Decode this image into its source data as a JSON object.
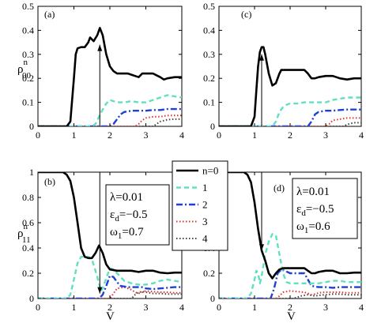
{
  "chart_data": [
    {
      "type": "line",
      "panel_label": "(a)",
      "ylabel_main": "ρ",
      "ylabel_sup": "n",
      "ylabel_sub": "00",
      "xlabel": "",
      "xlim": [
        0,
        4
      ],
      "ylim": [
        0,
        0.5
      ],
      "xticks": [
        0,
        1,
        2,
        3,
        4
      ],
      "yticks": [
        0,
        0.1,
        0.2,
        0.3,
        0.4,
        0.5
      ],
      "params": [],
      "arrow": {
        "x": 1.72,
        "y_from": 0.0,
        "y_to": 0.34
      },
      "series": [
        {
          "key": "n0",
          "x": [
            0,
            0.8,
            0.9,
            1.0,
            1.05,
            1.1,
            1.2,
            1.3,
            1.4,
            1.45,
            1.55,
            1.65,
            1.72,
            1.8,
            1.9,
            2.0,
            2.1,
            2.2,
            2.35,
            2.5,
            2.6,
            2.7,
            2.8,
            2.9,
            3.0,
            3.2,
            3.4,
            3.5,
            3.6,
            3.8,
            4.0
          ],
          "y": [
            0,
            0,
            0.02,
            0.2,
            0.3,
            0.325,
            0.33,
            0.33,
            0.35,
            0.37,
            0.355,
            0.38,
            0.41,
            0.38,
            0.3,
            0.25,
            0.23,
            0.22,
            0.22,
            0.22,
            0.215,
            0.21,
            0.205,
            0.22,
            0.22,
            0.22,
            0.205,
            0.195,
            0.2,
            0.205,
            0.205
          ]
        },
        {
          "key": "n1",
          "x": [
            0,
            1.5,
            1.6,
            1.7,
            1.8,
            1.9,
            2.0,
            2.1,
            2.2,
            2.4,
            2.6,
            2.8,
            3.0,
            3.2,
            3.4,
            3.6,
            3.8,
            4.0
          ],
          "y": [
            0,
            0,
            0.01,
            0.04,
            0.07,
            0.095,
            0.11,
            0.105,
            0.1,
            0.1,
            0.105,
            0.1,
            0.1,
            0.11,
            0.12,
            0.13,
            0.125,
            0.12
          ]
        },
        {
          "key": "n2",
          "x": [
            0,
            2.0,
            2.1,
            2.2,
            2.3,
            2.4,
            2.6,
            2.8,
            3.0,
            3.2,
            3.4,
            3.6,
            3.8,
            4.0
          ],
          "y": [
            0,
            0,
            0.01,
            0.03,
            0.05,
            0.06,
            0.065,
            0.065,
            0.065,
            0.068,
            0.068,
            0.072,
            0.072,
            0.072
          ]
        },
        {
          "key": "n3",
          "x": [
            0,
            2.7,
            2.8,
            2.9,
            3.0,
            3.2,
            3.4,
            3.6,
            3.8,
            4.0
          ],
          "y": [
            0,
            0,
            0.01,
            0.025,
            0.035,
            0.04,
            0.04,
            0.045,
            0.045,
            0.045
          ]
        },
        {
          "key": "n4",
          "x": [
            0,
            3.2,
            3.3,
            3.4,
            3.6,
            3.8,
            4.0
          ],
          "y": [
            0,
            0,
            0.01,
            0.02,
            0.028,
            0.03,
            0.03
          ]
        }
      ]
    },
    {
      "type": "line",
      "panel_label": "(c)",
      "ylabel_main": "",
      "ylabel_sup": "",
      "ylabel_sub": "",
      "xlabel": "",
      "xlim": [
        0,
        4
      ],
      "ylim": [
        0,
        0.5
      ],
      "xticks": [
        0,
        1,
        2,
        3,
        4
      ],
      "yticks": [
        0,
        0.1,
        0.2,
        0.3,
        0.4,
        0.5
      ],
      "params": [],
      "arrow": {
        "x": 1.2,
        "y_from": 0.0,
        "y_to": 0.3
      },
      "series": [
        {
          "key": "n0",
          "x": [
            0,
            0.9,
            1.0,
            1.05,
            1.1,
            1.15,
            1.2,
            1.25,
            1.3,
            1.4,
            1.5,
            1.6,
            1.7,
            1.75,
            1.85,
            2.0,
            2.2,
            2.4,
            2.5,
            2.6,
            2.7,
            2.8,
            3.0,
            3.2,
            3.4,
            3.6,
            3.8,
            4.0
          ],
          "y": [
            0,
            0,
            0.04,
            0.15,
            0.25,
            0.31,
            0.33,
            0.33,
            0.3,
            0.22,
            0.17,
            0.18,
            0.22,
            0.235,
            0.235,
            0.235,
            0.235,
            0.235,
            0.22,
            0.2,
            0.2,
            0.205,
            0.21,
            0.21,
            0.2,
            0.195,
            0.2,
            0.2
          ]
        },
        {
          "key": "n1",
          "x": [
            0,
            1.5,
            1.6,
            1.7,
            1.8,
            1.9,
            2.0,
            2.2,
            2.4,
            2.6,
            2.8,
            3.0,
            3.2,
            3.4,
            3.6,
            3.8,
            4.0
          ],
          "y": [
            0,
            0,
            0.02,
            0.06,
            0.08,
            0.09,
            0.095,
            0.095,
            0.1,
            0.1,
            0.1,
            0.1,
            0.11,
            0.115,
            0.12,
            0.12,
            0.12
          ]
        },
        {
          "key": "n2",
          "x": [
            0,
            2.5,
            2.6,
            2.7,
            2.8,
            3.0,
            3.2,
            3.4,
            3.6,
            3.8,
            4.0
          ],
          "y": [
            0,
            0,
            0.02,
            0.05,
            0.06,
            0.065,
            0.065,
            0.068,
            0.07,
            0.07,
            0.07
          ]
        },
        {
          "key": "n3",
          "x": [
            0,
            3.0,
            3.1,
            3.2,
            3.4,
            3.6,
            3.8,
            4.0
          ],
          "y": [
            0,
            0,
            0.01,
            0.025,
            0.03,
            0.035,
            0.035,
            0.035
          ]
        },
        {
          "key": "n4",
          "x": [
            0,
            3.5,
            3.6,
            3.7,
            3.8,
            4.0
          ],
          "y": [
            0,
            0,
            0.008,
            0.012,
            0.015,
            0.015
          ]
        }
      ]
    },
    {
      "type": "line",
      "panel_label": "(b)",
      "ylabel_main": "ρ",
      "ylabel_sup": "n",
      "ylabel_sub": "11",
      "xlabel": "V",
      "xlim": [
        0,
        4
      ],
      "ylim": [
        0,
        1
      ],
      "xticks": [
        0,
        1,
        2,
        3,
        4
      ],
      "yticks": [
        0,
        0.2,
        0.4,
        0.6,
        0.8,
        1
      ],
      "params": [
        "λ=0.01",
        "ε_d=−0.5",
        "ω_1=0.7"
      ],
      "arrow": {
        "x": 1.72,
        "y_from": 1.0,
        "y_to": 0.04
      },
      "series": [
        {
          "key": "n0",
          "x": [
            0,
            0.7,
            0.8,
            0.9,
            1.0,
            1.1,
            1.2,
            1.3,
            1.4,
            1.5,
            1.6,
            1.7,
            1.8,
            1.9,
            2.0,
            2.2,
            2.4,
            2.6,
            2.8,
            3.0,
            3.2,
            3.4,
            3.6,
            3.8,
            4.0
          ],
          "y": [
            1.0,
            1.0,
            0.98,
            0.93,
            0.8,
            0.6,
            0.4,
            0.33,
            0.32,
            0.32,
            0.36,
            0.42,
            0.36,
            0.27,
            0.23,
            0.22,
            0.22,
            0.22,
            0.21,
            0.22,
            0.22,
            0.205,
            0.2,
            0.205,
            0.205
          ]
        },
        {
          "key": "n1",
          "x": [
            0,
            0.8,
            0.9,
            1.0,
            1.1,
            1.2,
            1.3,
            1.4,
            1.5,
            1.6,
            1.7,
            1.75,
            1.8,
            1.9,
            2.0,
            2.1,
            2.2,
            2.4,
            2.6,
            2.8,
            3.0,
            3.2,
            3.4,
            3.6,
            3.8,
            4.0
          ],
          "y": [
            0,
            0,
            0.03,
            0.15,
            0.28,
            0.33,
            0.33,
            0.33,
            0.31,
            0.22,
            0.12,
            0.06,
            0.08,
            0.16,
            0.24,
            0.23,
            0.2,
            0.14,
            0.12,
            0.11,
            0.11,
            0.12,
            0.14,
            0.15,
            0.14,
            0.13
          ]
        },
        {
          "key": "n2",
          "x": [
            0,
            1.7,
            1.8,
            1.9,
            2.0,
            2.1,
            2.2,
            2.3,
            2.5,
            2.7,
            2.9,
            3.0,
            3.2,
            3.4,
            3.6,
            3.8,
            4.0
          ],
          "y": [
            0,
            0,
            0.03,
            0.1,
            0.18,
            0.17,
            0.13,
            0.1,
            0.09,
            0.09,
            0.09,
            0.08,
            0.075,
            0.08,
            0.085,
            0.09,
            0.09
          ]
        },
        {
          "key": "n3",
          "x": [
            0,
            2.0,
            2.1,
            2.2,
            2.4,
            2.6,
            2.7,
            2.8,
            2.9,
            3.0,
            3.2,
            3.4,
            3.6,
            3.8,
            4.0
          ],
          "y": [
            0,
            0,
            0.04,
            0.08,
            0.09,
            0.07,
            0.05,
            0.04,
            0.05,
            0.06,
            0.055,
            0.05,
            0.05,
            0.045,
            0.045
          ]
        },
        {
          "key": "n4",
          "x": [
            0,
            2.6,
            2.7,
            2.8,
            2.9,
            3.0,
            3.2,
            3.4,
            3.6,
            3.8,
            4.0
          ],
          "y": [
            0,
            0,
            0.03,
            0.05,
            0.055,
            0.05,
            0.04,
            0.04,
            0.035,
            0.035,
            0.035
          ]
        }
      ]
    },
    {
      "type": "line",
      "panel_label": "(d)",
      "ylabel_main": "",
      "ylabel_sup": "",
      "ylabel_sub": "",
      "xlabel": "V",
      "xlim": [
        0,
        4
      ],
      "ylim": [
        0,
        1
      ],
      "xticks": [
        0,
        1,
        2,
        3,
        4
      ],
      "yticks": [
        0,
        0.2,
        0.4,
        0.6,
        0.8,
        1
      ],
      "params": [
        "λ=0.01",
        "ε_d=−0.5",
        "ω_1=0.6"
      ],
      "arrow": {
        "x": 1.2,
        "y_from": 1.0,
        "y_to": 0.38
      },
      "series": [
        {
          "key": "n0",
          "x": [
            0,
            0.7,
            0.8,
            0.9,
            1.0,
            1.1,
            1.2,
            1.3,
            1.4,
            1.5,
            1.6,
            1.7,
            1.8,
            2.0,
            2.2,
            2.4,
            2.5,
            2.6,
            2.7,
            2.8,
            3.0,
            3.2,
            3.4,
            3.6,
            3.8,
            4.0
          ],
          "y": [
            1.0,
            1.0,
            0.98,
            0.92,
            0.76,
            0.55,
            0.38,
            0.3,
            0.2,
            0.16,
            0.2,
            0.23,
            0.24,
            0.24,
            0.24,
            0.24,
            0.22,
            0.2,
            0.2,
            0.21,
            0.22,
            0.22,
            0.2,
            0.2,
            0.205,
            0.205
          ]
        },
        {
          "key": "n1",
          "x": [
            0,
            0.8,
            0.9,
            1.0,
            1.05,
            1.1,
            1.15,
            1.2,
            1.3,
            1.4,
            1.5,
            1.6,
            1.7,
            1.8,
            1.9,
            2.0,
            2.2,
            2.4,
            2.6,
            2.8,
            3.0,
            3.2,
            3.4,
            3.6,
            3.8,
            4.0
          ],
          "y": [
            0,
            0,
            0.04,
            0.15,
            0.22,
            0.2,
            0.12,
            0.18,
            0.35,
            0.45,
            0.51,
            0.5,
            0.35,
            0.2,
            0.13,
            0.12,
            0.12,
            0.12,
            0.12,
            0.12,
            0.13,
            0.14,
            0.14,
            0.13,
            0.13,
            0.13
          ]
        },
        {
          "key": "n2",
          "x": [
            0,
            1.45,
            1.55,
            1.65,
            1.75,
            1.85,
            2.0,
            2.2,
            2.4,
            2.5,
            2.6,
            2.8,
            3.0,
            3.2,
            3.4,
            3.6,
            3.8,
            4.0
          ],
          "y": [
            0,
            0,
            0.08,
            0.2,
            0.23,
            0.22,
            0.2,
            0.2,
            0.2,
            0.15,
            0.1,
            0.09,
            0.09,
            0.085,
            0.09,
            0.09,
            0.09,
            0.09
          ]
        },
        {
          "key": "n3",
          "x": [
            0,
            1.6,
            1.7,
            1.8,
            2.0,
            2.2,
            2.4,
            2.5,
            2.6,
            2.7,
            2.8,
            3.0,
            3.2,
            3.4,
            3.6,
            3.8,
            4.0
          ],
          "y": [
            0,
            0,
            0.02,
            0.05,
            0.06,
            0.055,
            0.05,
            0.04,
            0.03,
            0.035,
            0.045,
            0.05,
            0.05,
            0.05,
            0.045,
            0.045,
            0.045
          ]
        },
        {
          "key": "n4",
          "x": [
            0,
            2.1,
            2.3,
            2.5,
            2.6,
            2.7,
            2.8,
            3.0,
            3.2,
            3.4,
            3.6,
            3.8,
            4.0
          ],
          "y": [
            0,
            0,
            0.02,
            0.03,
            0.025,
            0.02,
            0.025,
            0.03,
            0.035,
            0.035,
            0.03,
            0.03,
            0.03
          ]
        }
      ]
    }
  ],
  "legend": {
    "entries": [
      {
        "key": "n0",
        "label": "n=0"
      },
      {
        "key": "n1",
        "label": "1"
      },
      {
        "key": "n2",
        "label": "2"
      },
      {
        "key": "n3",
        "label": "3"
      },
      {
        "key": "n4",
        "label": "4"
      }
    ]
  },
  "series_style": {
    "n0": {
      "color": "#000000",
      "dash": "",
      "width": 2.6
    },
    "n1": {
      "color": "#5fe0c0",
      "dash": "6,4",
      "width": 2.4
    },
    "n2": {
      "color": "#1f3fd8",
      "dash": "8,3,2,3",
      "width": 2.4
    },
    "n3": {
      "color": "#e0302a",
      "dash": "1.5,2.5",
      "width": 2.0
    },
    "n4": {
      "color": "#444444",
      "dash": "1.5,2.5",
      "width": 2.0
    }
  }
}
